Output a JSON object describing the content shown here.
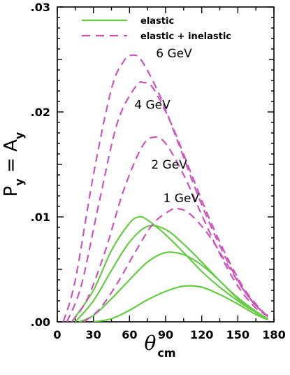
{
  "chart_data": {
    "type": "line",
    "title": "",
    "xlabel": "θ",
    "xlabel_subscript": "cm",
    "ylabel_main": "P",
    "ylabel_sub1": "y",
    "ylabel_eq": "=",
    "ylabel_main2": "A",
    "ylabel_sub2": "y",
    "xlim": [
      0,
      180
    ],
    "ylim": [
      0,
      0.03
    ],
    "x_ticks": [
      0,
      30,
      60,
      90,
      120,
      150,
      180
    ],
    "x_tick_labels": [
      "0",
      "30",
      "60",
      "90",
      "120",
      "150",
      "180"
    ],
    "y_ticks": [
      0,
      0.01,
      0.02,
      0.03
    ],
    "y_tick_labels": [
      ".00",
      ".01",
      ".02",
      ".03"
    ],
    "legend_position": "top-left",
    "legend": [
      {
        "label": "elastic",
        "style": "solid",
        "color": "#66cc44"
      },
      {
        "label": "elastic + inelastic",
        "style": "dashed",
        "color": "#cc55bb"
      }
    ],
    "annotations": [
      {
        "text": "6  GeV",
        "x": 82,
        "y": 0.0252
      },
      {
        "text": "4  GeV",
        "x": 64,
        "y": 0.0203
      },
      {
        "text": "2  GeV",
        "x": 78,
        "y": 0.0146
      },
      {
        "text": "1  GeV",
        "x": 88,
        "y": 0.0114
      }
    ],
    "series": [
      {
        "group": "elastic",
        "energy": "1 GeV",
        "x": [
          30,
          45,
          60,
          75,
          90,
          105,
          120,
          135,
          150,
          165,
          175
        ],
        "y": [
          0,
          0.0003,
          0.0011,
          0.0021,
          0.0029,
          0.0034,
          0.0033,
          0.0026,
          0.0017,
          0.0007,
          0.0002
        ]
      },
      {
        "group": "elastic",
        "energy": "2 GeV",
        "x": [
          18,
          30,
          45,
          60,
          75,
          90,
          105,
          120,
          135,
          150,
          165,
          175
        ],
        "y": [
          0,
          0.0006,
          0.0022,
          0.004,
          0.0057,
          0.0066,
          0.0064,
          0.0054,
          0.0039,
          0.0022,
          0.0009,
          0.0002
        ]
      },
      {
        "group": "elastic",
        "energy": "4 GeV",
        "x": [
          15,
          30,
          45,
          60,
          75,
          90,
          105,
          120,
          135,
          150,
          165,
          175
        ],
        "y": [
          0,
          0.002,
          0.0049,
          0.0076,
          0.0091,
          0.0088,
          0.0074,
          0.0057,
          0.0039,
          0.0023,
          0.001,
          0.0003
        ]
      },
      {
        "group": "elastic",
        "energy": "6 GeV",
        "x": [
          12,
          30,
          45,
          60,
          68,
          75,
          90,
          105,
          120,
          135,
          150,
          165,
          175
        ],
        "y": [
          0,
          0.003,
          0.0068,
          0.0094,
          0.01,
          0.0097,
          0.0083,
          0.0066,
          0.0048,
          0.0033,
          0.002,
          0.0009,
          0.0003
        ]
      },
      {
        "group": "elastic+inelastic",
        "energy": "1 GeV",
        "x": [
          22,
          35,
          50,
          65,
          80,
          95,
          100,
          110,
          125,
          140,
          155,
          168,
          175
        ],
        "y": [
          0,
          0.0012,
          0.0037,
          0.0067,
          0.0094,
          0.0107,
          0.0108,
          0.0103,
          0.0084,
          0.0057,
          0.003,
          0.0012,
          0.0005
        ]
      },
      {
        "group": "elastic+inelastic",
        "energy": "2 GeV",
        "x": [
          12,
          25,
          40,
          55,
          70,
          80,
          90,
          105,
          120,
          135,
          150,
          165,
          175
        ],
        "y": [
          0,
          0.0022,
          0.0068,
          0.0125,
          0.0166,
          0.0176,
          0.017,
          0.014,
          0.0102,
          0.0065,
          0.0034,
          0.0013,
          0.0006
        ]
      },
      {
        "group": "elastic+inelastic",
        "energy": "4 GeV",
        "x": [
          8,
          20,
          35,
          50,
          65,
          72,
          80,
          95,
          110,
          125,
          140,
          155,
          168,
          175
        ],
        "y": [
          0,
          0.0035,
          0.0115,
          0.019,
          0.0224,
          0.0228,
          0.0222,
          0.0188,
          0.0145,
          0.0102,
          0.0064,
          0.0032,
          0.0013,
          0.0005
        ]
      },
      {
        "group": "elastic+inelastic",
        "energy": "6 GeV",
        "x": [
          5,
          15,
          30,
          45,
          55,
          62,
          70,
          85,
          100,
          115,
          130,
          145,
          160,
          175
        ],
        "y": [
          0,
          0.004,
          0.014,
          0.0222,
          0.0248,
          0.0254,
          0.0249,
          0.0216,
          0.0172,
          0.0126,
          0.0085,
          0.005,
          0.0022,
          0.0005
        ]
      }
    ]
  },
  "colors": {
    "elastic": "#66cc44",
    "inelastic": "#cc55bb",
    "axis": "#000000"
  }
}
